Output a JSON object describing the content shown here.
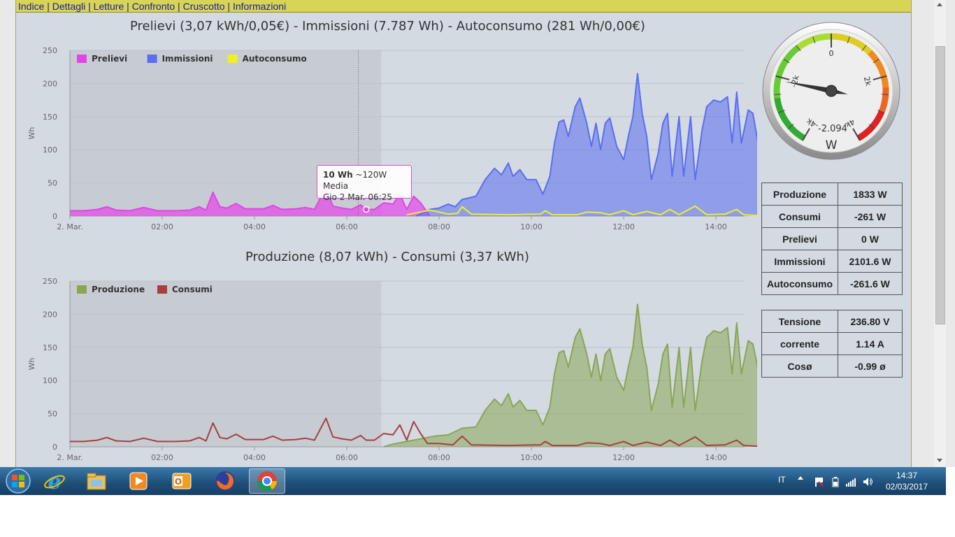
{
  "menu": {
    "items": [
      "Indice",
      "Dettagli",
      "Letture",
      "Confronto",
      "Cruscotto",
      "Informazioni"
    ],
    "separator": " | "
  },
  "chart1_title": "Prelievi (3,07 kWh/0,05€) - Immissioni (7.787 Wh) - Autoconsumo (281 Wh/0,00€)",
  "chart2_title": "Produzione (8,07 kWh) - Consumi (3,37 kWh)",
  "tooltip": {
    "bold": "10 Wh",
    "rest": " ~120W Media",
    "line2": "Gio 2 Mar. 06:25"
  },
  "gauge": {
    "value_text": "-2.094",
    "value": -2094,
    "unit": "W",
    "labels": [
      "-4k",
      "-2k",
      "0",
      "2k",
      "4k"
    ],
    "min": -4000,
    "max": 4000
  },
  "table1": [
    {
      "label": "Produzione",
      "value": "1833 W"
    },
    {
      "label": "Consumi",
      "value": "-261 W"
    },
    {
      "label": "Prelievi",
      "value": "0 W"
    },
    {
      "label": "Immissioni",
      "value": "2101.6 W"
    },
    {
      "label": "Autoconsumo",
      "value": "-261.6 W"
    }
  ],
  "table2": [
    {
      "label": "Tensione",
      "value": "236.80 V"
    },
    {
      "label": "corrente",
      "value": "1.14 A"
    },
    {
      "label": "Cosø",
      "value": "-0.99 ø"
    }
  ],
  "taskbar": {
    "lang": "IT",
    "time": "14:37",
    "date": "02/03/2017",
    "apps": [
      "start-orb-icon",
      "internet-explorer-icon",
      "file-explorer-icon",
      "media-player-icon",
      "outlook-icon",
      "firefox-icon",
      "chrome-icon"
    ]
  },
  "chart_data": [
    {
      "type": "area",
      "ylabel": "Wh",
      "ylim": [
        0,
        250
      ],
      "yticks": [
        "0",
        "50",
        "100",
        "150",
        "200",
        "250"
      ],
      "xticks": [
        "2. Mar.",
        "02:00",
        "04:00",
        "06:00",
        "08:00",
        "10:00",
        "12:00",
        "14:00"
      ],
      "xrange_hours": [
        0,
        14.62
      ],
      "highlight_band": [
        0,
        6.75
      ],
      "colors": {
        "Prelievi": "#e244e8",
        "Immissioni": "#5a6ef0",
        "Autoconsumo": "#f0f020"
      },
      "legend": [
        "Prelievi",
        "Immissioni",
        "Autoconsumo"
      ],
      "series": [
        {
          "name": "Prelievi",
          "points": [
            [
              0,
              8
            ],
            [
              0.3,
              8
            ],
            [
              0.6,
              10
            ],
            [
              0.8,
              14
            ],
            [
              1.0,
              9
            ],
            [
              1.3,
              8
            ],
            [
              1.6,
              13
            ],
            [
              1.9,
              8
            ],
            [
              2.3,
              8
            ],
            [
              2.6,
              9
            ],
            [
              2.8,
              14
            ],
            [
              2.95,
              9
            ],
            [
              3.1,
              36
            ],
            [
              3.25,
              14
            ],
            [
              3.4,
              12
            ],
            [
              3.6,
              19
            ],
            [
              3.8,
              11
            ],
            [
              4.2,
              11
            ],
            [
              4.4,
              16
            ],
            [
              4.6,
              10
            ],
            [
              4.9,
              11
            ],
            [
              5.1,
              13
            ],
            [
              5.3,
              10
            ],
            [
              5.55,
              43
            ],
            [
              5.7,
              15
            ],
            [
              5.9,
              12
            ],
            [
              6.1,
              10
            ],
            [
              6.3,
              17
            ],
            [
              6.42,
              10
            ],
            [
              6.6,
              10
            ],
            [
              6.8,
              20
            ],
            [
              7.0,
              18
            ],
            [
              7.15,
              33
            ],
            [
              7.3,
              10
            ],
            [
              7.45,
              30
            ],
            [
              7.6,
              20
            ],
            [
              7.75,
              5
            ],
            [
              7.8,
              0
            ]
          ]
        },
        {
          "name": "Immissioni",
          "points": [
            [
              7.5,
              0
            ],
            [
              7.8,
              10
            ],
            [
              8.0,
              12
            ],
            [
              8.2,
              18
            ],
            [
              8.35,
              14
            ],
            [
              8.5,
              25
            ],
            [
              8.8,
              30
            ],
            [
              9.0,
              55
            ],
            [
              9.2,
              72
            ],
            [
              9.35,
              62
            ],
            [
              9.5,
              80
            ],
            [
              9.6,
              60
            ],
            [
              9.75,
              70
            ],
            [
              9.9,
              55
            ],
            [
              10.1,
              55
            ],
            [
              10.25,
              33
            ],
            [
              10.4,
              60
            ],
            [
              10.5,
              110
            ],
            [
              10.6,
              142
            ],
            [
              10.7,
              145
            ],
            [
              10.8,
              120
            ],
            [
              10.95,
              165
            ],
            [
              11.05,
              178
            ],
            [
              11.2,
              140
            ],
            [
              11.3,
              105
            ],
            [
              11.4,
              140
            ],
            [
              11.5,
              100
            ],
            [
              11.6,
              140
            ],
            [
              11.7,
              148
            ],
            [
              11.85,
              105
            ],
            [
              12.0,
              85
            ],
            [
              12.1,
              120
            ],
            [
              12.2,
              150
            ],
            [
              12.3,
              215
            ],
            [
              12.4,
              155
            ],
            [
              12.5,
              120
            ],
            [
              12.6,
              55
            ],
            [
              12.75,
              95
            ],
            [
              12.85,
              140
            ],
            [
              12.95,
              155
            ],
            [
              13.05,
              60
            ],
            [
              13.2,
              150
            ],
            [
              13.3,
              60
            ],
            [
              13.45,
              150
            ],
            [
              13.55,
              55
            ],
            [
              13.7,
              130
            ],
            [
              13.8,
              165
            ],
            [
              13.95,
              175
            ],
            [
              14.1,
              172
            ],
            [
              14.25,
              180
            ],
            [
              14.35,
              110
            ],
            [
              14.45,
              187
            ],
            [
              14.55,
              110
            ],
            [
              14.7,
              160
            ],
            [
              14.8,
              155
            ],
            [
              14.95,
              95
            ]
          ]
        },
        {
          "name": "Autoconsumo",
          "points": [
            [
              7.3,
              2
            ],
            [
              7.6,
              6
            ],
            [
              7.8,
              9
            ],
            [
              8.0,
              6
            ],
            [
              8.2,
              3
            ],
            [
              8.4,
              4
            ],
            [
              8.5,
              14
            ],
            [
              8.7,
              3
            ],
            [
              9.5,
              2
            ],
            [
              10.2,
              3
            ],
            [
              10.3,
              8
            ],
            [
              10.45,
              2
            ],
            [
              11.0,
              2
            ],
            [
              11.2,
              6
            ],
            [
              11.5,
              5
            ],
            [
              11.7,
              2
            ],
            [
              12.0,
              8
            ],
            [
              12.2,
              2
            ],
            [
              12.5,
              7
            ],
            [
              12.8,
              2
            ],
            [
              13.0,
              10
            ],
            [
              13.2,
              2
            ],
            [
              13.55,
              15
            ],
            [
              13.8,
              2
            ],
            [
              14.2,
              3
            ],
            [
              14.45,
              10
            ],
            [
              14.6,
              2
            ],
            [
              14.9,
              1
            ],
            [
              14.95,
              13
            ]
          ]
        }
      ]
    },
    {
      "type": "area",
      "ylabel": "Wh",
      "ylim": [
        0,
        250
      ],
      "yticks": [
        "0",
        "50",
        "100",
        "150",
        "200",
        "250"
      ],
      "xticks": [
        "2. Mar.",
        "02:00",
        "04:00",
        "06:00",
        "08:00",
        "10:00",
        "12:00",
        "14:00"
      ],
      "xrange_hours": [
        0,
        14.62
      ],
      "highlight_band": [
        0,
        6.75
      ],
      "colors": {
        "Produzione": "#8aa653",
        "Consumi": "#a5403e"
      },
      "legend": [
        "Produzione",
        "Consumi"
      ],
      "series": [
        {
          "name": "Produzione",
          "points": [
            [
              6.8,
              0
            ],
            [
              7.0,
              4
            ],
            [
              7.3,
              8
            ],
            [
              7.6,
              12
            ],
            [
              7.9,
              16
            ],
            [
              8.2,
              18
            ],
            [
              8.5,
              28
            ],
            [
              8.8,
              30
            ],
            [
              9.0,
              55
            ],
            [
              9.2,
              72
            ],
            [
              9.35,
              62
            ],
            [
              9.5,
              80
            ],
            [
              9.6,
              60
            ],
            [
              9.75,
              70
            ],
            [
              9.9,
              55
            ],
            [
              10.1,
              55
            ],
            [
              10.25,
              33
            ],
            [
              10.4,
              60
            ],
            [
              10.5,
              110
            ],
            [
              10.6,
              142
            ],
            [
              10.7,
              145
            ],
            [
              10.8,
              120
            ],
            [
              10.95,
              165
            ],
            [
              11.05,
              178
            ],
            [
              11.2,
              140
            ],
            [
              11.3,
              105
            ],
            [
              11.4,
              140
            ],
            [
              11.5,
              100
            ],
            [
              11.6,
              140
            ],
            [
              11.7,
              148
            ],
            [
              11.85,
              105
            ],
            [
              12.0,
              85
            ],
            [
              12.1,
              120
            ],
            [
              12.2,
              150
            ],
            [
              12.3,
              215
            ],
            [
              12.4,
              155
            ],
            [
              12.5,
              120
            ],
            [
              12.6,
              55
            ],
            [
              12.75,
              95
            ],
            [
              12.85,
              140
            ],
            [
              12.95,
              155
            ],
            [
              13.05,
              60
            ],
            [
              13.2,
              150
            ],
            [
              13.3,
              60
            ],
            [
              13.45,
              150
            ],
            [
              13.55,
              55
            ],
            [
              13.7,
              130
            ],
            [
              13.8,
              165
            ],
            [
              13.95,
              175
            ],
            [
              14.1,
              172
            ],
            [
              14.25,
              180
            ],
            [
              14.35,
              110
            ],
            [
              14.45,
              187
            ],
            [
              14.55,
              110
            ],
            [
              14.7,
              160
            ],
            [
              14.8,
              155
            ],
            [
              14.95,
              105
            ]
          ]
        },
        {
          "name": "Consumi",
          "points": [
            [
              0,
              8
            ],
            [
              0.3,
              8
            ],
            [
              0.6,
              10
            ],
            [
              0.8,
              14
            ],
            [
              1.0,
              9
            ],
            [
              1.3,
              8
            ],
            [
              1.6,
              13
            ],
            [
              1.9,
              8
            ],
            [
              2.3,
              8
            ],
            [
              2.6,
              9
            ],
            [
              2.8,
              14
            ],
            [
              2.95,
              9
            ],
            [
              3.1,
              36
            ],
            [
              3.25,
              14
            ],
            [
              3.4,
              12
            ],
            [
              3.6,
              19
            ],
            [
              3.8,
              11
            ],
            [
              4.2,
              11
            ],
            [
              4.4,
              16
            ],
            [
              4.6,
              10
            ],
            [
              4.9,
              11
            ],
            [
              5.1,
              13
            ],
            [
              5.3,
              10
            ],
            [
              5.55,
              43
            ],
            [
              5.7,
              15
            ],
            [
              5.9,
              12
            ],
            [
              6.1,
              10
            ],
            [
              6.3,
              17
            ],
            [
              6.42,
              10
            ],
            [
              6.6,
              10
            ],
            [
              6.8,
              20
            ],
            [
              7.0,
              18
            ],
            [
              7.15,
              33
            ],
            [
              7.3,
              10
            ],
            [
              7.45,
              38
            ],
            [
              7.6,
              20
            ],
            [
              7.75,
              5
            ],
            [
              8.0,
              5
            ],
            [
              8.3,
              3
            ],
            [
              8.5,
              16
            ],
            [
              8.7,
              3
            ],
            [
              9.5,
              2
            ],
            [
              10.2,
              3
            ],
            [
              10.3,
              8
            ],
            [
              10.45,
              2
            ],
            [
              11.0,
              2
            ],
            [
              11.2,
              6
            ],
            [
              11.5,
              5
            ],
            [
              11.7,
              2
            ],
            [
              12.0,
              8
            ],
            [
              12.2,
              2
            ],
            [
              12.5,
              7
            ],
            [
              12.8,
              2
            ],
            [
              13.0,
              10
            ],
            [
              13.2,
              2
            ],
            [
              13.55,
              15
            ],
            [
              13.8,
              2
            ],
            [
              14.2,
              3
            ],
            [
              14.45,
              10
            ],
            [
              14.6,
              2
            ],
            [
              14.9,
              1
            ],
            [
              14.95,
              13
            ]
          ]
        }
      ]
    }
  ]
}
